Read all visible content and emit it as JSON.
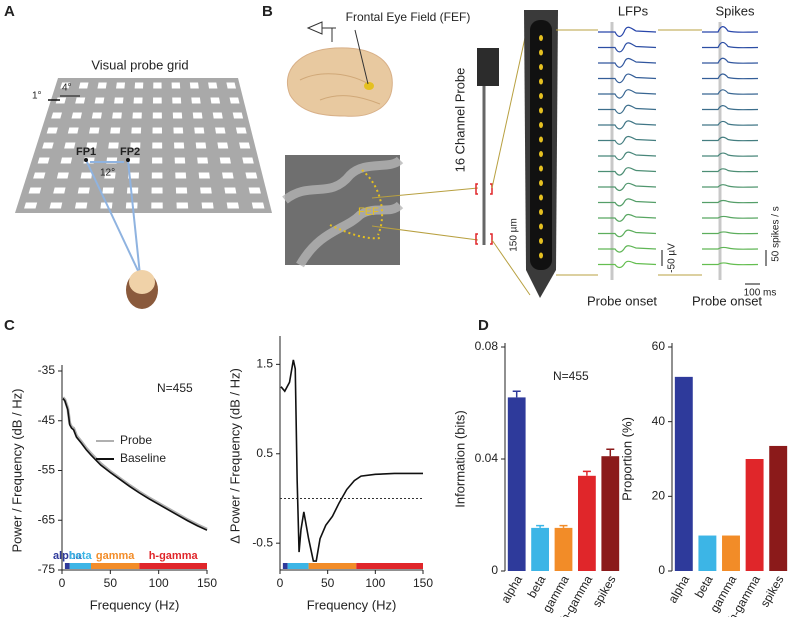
{
  "figure": {
    "panels": [
      "A",
      "B",
      "C",
      "D"
    ]
  },
  "panel_a": {
    "title": "Visual probe grid",
    "scale_small": "1°",
    "scale_large": "4°",
    "fp1": "FP1",
    "fp2": "FP2",
    "separation": "12°"
  },
  "panel_b": {
    "region_label": "Frontal Eye Field (FEF)",
    "mri_label": "FEF",
    "probe_label": "16 Channel Probe",
    "spacing": "150 µm",
    "lfp_title": "LFPs",
    "spike_title": "Spikes",
    "lfp_onset": "Probe onset",
    "spike_onset": "Probe onset",
    "lfp_scale": "-50 µV",
    "spike_scale": "50 spikes / s",
    "time_scale": "100 ms"
  },
  "chart_data": [
    {
      "type": "line",
      "xlabel": "Frequency (Hz)",
      "ylabel": "Power / Frequency (dB / Hz)",
      "annotation": "N=455",
      "legend": "right",
      "x": [
        1,
        3,
        6,
        8,
        10,
        12,
        15,
        20,
        25,
        30,
        40,
        50,
        60,
        70,
        80,
        90,
        100,
        110,
        120,
        130,
        140,
        150
      ],
      "series": [
        {
          "name": "Probe",
          "color": "#b0b0b0",
          "values": [
            -40.3,
            -40.8,
            -42.5,
            -45.5,
            -46.3,
            -46.5,
            -48,
            -49.2,
            -50.5,
            -51.6,
            -53.6,
            -55.2,
            -56.6,
            -58,
            -59.3,
            -60.5,
            -61.6,
            -62.7,
            -63.8,
            -64.9,
            -65.9,
            -66.8
          ]
        },
        {
          "name": "Baseline",
          "color": "#111111",
          "values": [
            -40.5,
            -41,
            -42.8,
            -45.8,
            -46.5,
            -46.8,
            -48.3,
            -49.5,
            -50.8,
            -51.9,
            -53.9,
            -55.4,
            -56.8,
            -58.2,
            -59.5,
            -60.7,
            -61.8,
            -62.9,
            -64,
            -65.1,
            -66.1,
            -67
          ]
        }
      ],
      "bands": [
        {
          "name": "alpha",
          "color": "#2e3a9b",
          "range": [
            3,
            8
          ]
        },
        {
          "name": "beta",
          "color": "#3cb5e6",
          "range": [
            8,
            30
          ]
        },
        {
          "name": "gamma",
          "color": "#f28c28",
          "range": [
            30,
            80
          ]
        },
        {
          "name": "h-gamma",
          "color": "#e0262a",
          "range": [
            80,
            150
          ]
        }
      ],
      "xlim": [
        0,
        150
      ],
      "xticks": [
        0,
        50,
        100,
        150
      ],
      "ylim": [
        -75,
        -35
      ],
      "yticks": [
        -75,
        -65,
        -55,
        -45,
        -35
      ]
    },
    {
      "type": "line",
      "xlabel": "Frequency (Hz)",
      "ylabel": "Δ Power / Frequency (dB / Hz)",
      "x": [
        1,
        5,
        10,
        14,
        16,
        18,
        20,
        22,
        25,
        30,
        35,
        38,
        42,
        48,
        55,
        62,
        70,
        78,
        85,
        100,
        120,
        150
      ],
      "series": [
        {
          "name": "Δ Power",
          "color": "#111111",
          "values": [
            1.25,
            1.2,
            1.3,
            1.55,
            1.45,
            0.2,
            -0.6,
            -0.35,
            -0.15,
            -0.45,
            -0.7,
            -0.7,
            -0.45,
            -0.3,
            -0.2,
            -0.05,
            0.1,
            0.2,
            0.25,
            0.27,
            0.28,
            0.28
          ]
        }
      ],
      "hline": 0,
      "bands": [
        {
          "color": "#2e3a9b",
          "range": [
            3,
            8
          ]
        },
        {
          "color": "#3cb5e6",
          "range": [
            8,
            30
          ]
        },
        {
          "color": "#f28c28",
          "range": [
            30,
            80
          ]
        },
        {
          "color": "#e0262a",
          "range": [
            80,
            150
          ]
        }
      ],
      "xlim": [
        0,
        150
      ],
      "xticks": [
        0,
        50,
        100,
        150
      ],
      "ylim": [
        -0.8,
        1.75
      ],
      "yticks": [
        -0.5,
        0.5,
        1.5
      ]
    },
    {
      "type": "bar",
      "ylabel": "Information (bits)",
      "annotation": "N=455",
      "categories": [
        "alpha",
        "beta",
        "gamma",
        "h-gamma",
        "spikes"
      ],
      "values": [
        0.062,
        0.0154,
        0.0154,
        0.034,
        0.041
      ],
      "errors": [
        0.0022,
        0.0008,
        0.0008,
        0.0016,
        0.0025
      ],
      "colors": [
        "#2e3a9b",
        "#3cb5e6",
        "#f28c28",
        "#e0262a",
        "#8b1a1a"
      ],
      "ylim": [
        0,
        0.08
      ],
      "yticks": [
        0,
        0.04,
        0.08
      ]
    },
    {
      "type": "bar",
      "ylabel": "Proportion (%)",
      "categories": [
        "alpha",
        "beta",
        "gamma",
        "h-gamma",
        "spikes"
      ],
      "values": [
        52,
        9.5,
        9.5,
        30,
        33.5
      ],
      "colors": [
        "#2e3a9b",
        "#3cb5e6",
        "#f28c28",
        "#e0262a",
        "#8b1a1a"
      ],
      "ylim": [
        0,
        60
      ],
      "yticks": [
        0,
        20,
        40,
        60
      ]
    }
  ]
}
